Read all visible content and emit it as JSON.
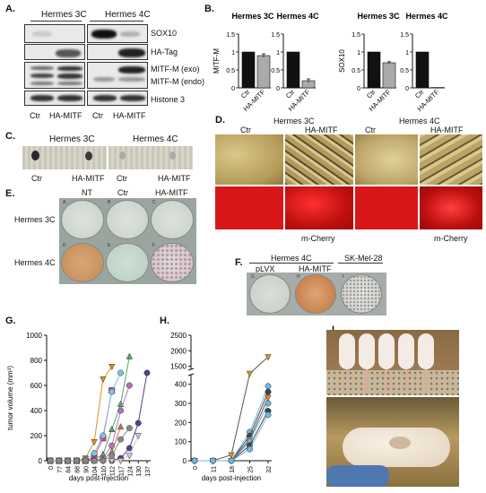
{
  "panels": {
    "A": {
      "label": "A.",
      "groups": [
        "Hermes 3C",
        "Hermes 4C"
      ],
      "rows": [
        "SOX10",
        "HA-Tag",
        "MITF-M (exo)",
        "MITF-M (endo)",
        "Histone 3"
      ],
      "lanes": [
        "Ctr",
        "HA-MITF",
        "Ctr",
        "HA-MITF"
      ]
    },
    "B": {
      "label": "B.",
      "titles": [
        "Hermes 3C",
        "Hermes 4C",
        "Hermes 3C",
        "Hermes 4C"
      ],
      "ylabels": [
        "MITF-M",
        "SOX10"
      ],
      "categories": [
        "Ctr",
        "HA-MITF"
      ]
    },
    "C": {
      "label": "C.",
      "groups": [
        "Hermes 3C",
        "Hermes 4C"
      ],
      "lanes": [
        "Ctr",
        "HA-MITF",
        "Ctr",
        "HA-MITF"
      ]
    },
    "D": {
      "label": "D.",
      "groups": [
        "Hermes 3C",
        "Hermes 4C"
      ],
      "lanes": [
        "Ctr",
        "HA-MITF",
        "Ctr",
        "HA-MITF"
      ],
      "fluor_label": "m-Cherry"
    },
    "E": {
      "label": "E.",
      "cols": [
        "NT",
        "Ctr",
        "HA-MITF"
      ],
      "rows": [
        "Hermes 3C",
        "Hermes 4C"
      ],
      "well_letters": [
        "A",
        "B",
        "C",
        "D",
        "E",
        "F"
      ]
    },
    "F": {
      "label": "F.",
      "group": "Hermes 4C",
      "cols": [
        "pLVX",
        "HA-MITF",
        "SK-Mel-28"
      ],
      "well_letters": [
        "G",
        "H",
        "I"
      ]
    },
    "G": {
      "label": "G."
    },
    "H": {
      "label": "H."
    },
    "I": {
      "label": "I."
    }
  },
  "chart_data": [
    {
      "type": "bar",
      "panel": "B",
      "title": "Hermes 3C",
      "ylabel": "MITF-M",
      "categories": [
        "Ctr",
        "HA-MITF"
      ],
      "values": [
        1.0,
        0.9
      ],
      "errors": [
        0.0,
        0.05
      ],
      "ylim": [
        0,
        1.5
      ],
      "yticks": [
        0,
        0.5,
        1,
        1.5
      ],
      "colors": [
        "#111111",
        "#aaaaaa"
      ]
    },
    {
      "type": "bar",
      "panel": "B",
      "title": "Hermes 4C",
      "ylabel": "",
      "categories": [
        "Ctr",
        "HA-MITF"
      ],
      "values": [
        1.0,
        0.2
      ],
      "errors": [
        0.0,
        0.05
      ],
      "ylim": [
        0,
        1.5
      ],
      "yticks": [
        0,
        0.5,
        1,
        1.5
      ],
      "colors": [
        "#111111",
        "#aaaaaa"
      ]
    },
    {
      "type": "bar",
      "panel": "B",
      "title": "Hermes 3C",
      "ylabel": "SOX10",
      "categories": [
        "Ctr",
        "HA-MITF"
      ],
      "values": [
        1.0,
        0.7
      ],
      "errors": [
        0.0,
        0.03
      ],
      "ylim": [
        0,
        1.5
      ],
      "yticks": [
        0,
        0.5,
        1,
        1.5
      ],
      "colors": [
        "#111111",
        "#aaaaaa"
      ]
    },
    {
      "type": "bar",
      "panel": "B",
      "title": "Hermes 4C",
      "ylabel": "",
      "categories": [
        "Ctr",
        "HA-MITF"
      ],
      "values": [
        1.0,
        0.01
      ],
      "errors": [
        0.0,
        0.0
      ],
      "ylim": [
        0,
        1.5
      ],
      "yticks": [
        0,
        0.5,
        1,
        1.5
      ],
      "colors": [
        "#111111",
        "#aaaaaa"
      ]
    },
    {
      "type": "line",
      "panel": "G",
      "ylabel": "tumor volume (mm³)",
      "xlabel": "days post-injection",
      "x": [
        "0",
        "77",
        "84",
        "88",
        "90",
        "104",
        "110",
        "112",
        "117",
        "124",
        "130",
        "137"
      ],
      "ylim": [
        0,
        1000
      ],
      "yticks": [
        0,
        200,
        400,
        600,
        800,
        1000
      ],
      "series": [
        {
          "color": "#5a3d8a",
          "marker": "circle",
          "values": [
            0,
            0,
            0,
            0,
            0,
            0,
            0,
            0,
            20,
            100,
            300,
            700
          ]
        },
        {
          "color": "#cccccc",
          "marker": "triangle-down",
          "values": [
            0,
            0,
            0,
            0,
            0,
            0,
            0,
            0,
            0,
            40,
            200,
            null
          ]
        },
        {
          "color": "#e09020",
          "marker": "triangle-down",
          "values": [
            0,
            0,
            0,
            0,
            20,
            150,
            650,
            750,
            null,
            null,
            null,
            null
          ]
        },
        {
          "color": "#d63d8e",
          "marker": "square",
          "values": [
            0,
            0,
            0,
            0,
            0,
            30,
            180,
            560,
            null,
            null,
            null,
            null
          ]
        },
        {
          "color": "#4caf60",
          "marker": "triangle-up",
          "values": [
            0,
            0,
            0,
            0,
            0,
            10,
            50,
            250,
            450,
            830,
            null,
            null
          ]
        },
        {
          "color": "#7fc2e8",
          "marker": "circle",
          "values": [
            0,
            0,
            0,
            0,
            10,
            60,
            200,
            550,
            700,
            null,
            null,
            null
          ]
        },
        {
          "color": "#b56fbf",
          "marker": "circle",
          "values": [
            0,
            0,
            0,
            0,
            0,
            0,
            20,
            120,
            400,
            600,
            null,
            null
          ]
        },
        {
          "color": "#b08060",
          "marker": "triangle-up",
          "values": [
            0,
            0,
            0,
            0,
            0,
            0,
            10,
            70,
            270,
            null,
            null,
            null
          ]
        },
        {
          "color": "#888888",
          "marker": "circle",
          "values": [
            0,
            0,
            0,
            0,
            0,
            0,
            0,
            40,
            170,
            260,
            null,
            null
          ]
        }
      ]
    },
    {
      "type": "line",
      "panel": "H",
      "xlabel": "days post-injection",
      "x": [
        "0",
        "11",
        "18",
        "25",
        "32"
      ],
      "ylim": [
        0,
        2500
      ],
      "yticks": [
        0,
        100,
        200,
        300,
        400,
        1500,
        2000,
        2500
      ],
      "axis_break": [
        450,
        1400
      ],
      "series": [
        {
          "color": "#e09020",
          "marker": "triangle-down",
          "values": [
            0,
            0,
            30,
            650,
            1800
          ]
        },
        {
          "color": "#6fb5e0",
          "marker": "circle",
          "values": [
            0,
            0,
            0,
            150,
            390
          ]
        },
        {
          "color": "#444444",
          "marker": "circle",
          "values": [
            0,
            0,
            0,
            130,
            360
          ]
        },
        {
          "color": "#e09020",
          "marker": "triangle-down",
          "values": [
            0,
            0,
            0,
            110,
            330
          ]
        },
        {
          "color": "#6fb5e0",
          "marker": "circle",
          "values": [
            0,
            0,
            0,
            100,
            300
          ]
        },
        {
          "color": "#444444",
          "marker": "circle",
          "values": [
            0,
            0,
            0,
            80,
            260
          ]
        },
        {
          "color": "#6fb5e0",
          "marker": "circle",
          "values": [
            0,
            0,
            0,
            60,
            240
          ]
        }
      ]
    }
  ]
}
